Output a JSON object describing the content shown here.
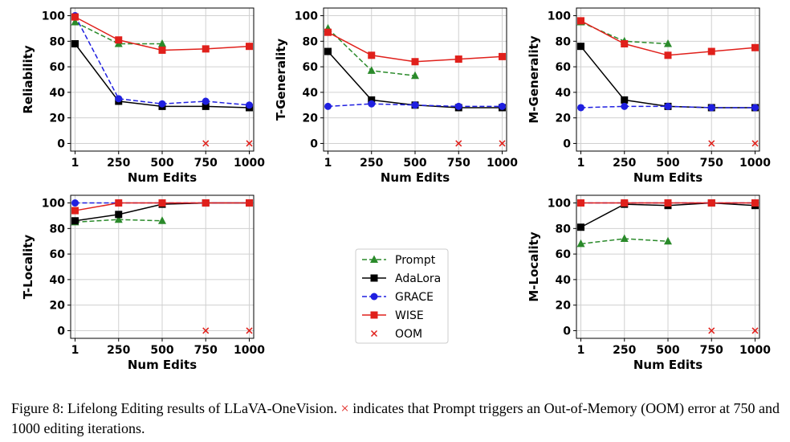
{
  "figure": {
    "caption_prefix": "Figure 8: Lifelong Editing results of LLaVA-OneVision.",
    "caption_mark": "×",
    "caption_suffix": "indicates that Prompt triggers an Out-of-Memory (OOM) error at 750 and 1000 editing iterations."
  },
  "legend": [
    {
      "name": "Prompt",
      "color": "#2a8a2a",
      "marker": "triangle",
      "dash": true
    },
    {
      "name": "AdaLora",
      "color": "#000000",
      "marker": "square",
      "dash": false
    },
    {
      "name": "GRACE",
      "color": "#1f1fe0",
      "marker": "circle",
      "dash": true
    },
    {
      "name": "WISE",
      "color": "#e0201b",
      "marker": "square",
      "dash": false
    },
    {
      "name": "OOM",
      "color": "#e0201b",
      "marker": "x",
      "dash": false
    }
  ],
  "chart_data": [
    {
      "type": "line",
      "ylabel": "Reliability",
      "xlabel": "Num Edits",
      "categories": [
        "1",
        "250",
        "500",
        "750",
        "1000"
      ],
      "ylim": [
        -6,
        106
      ],
      "yticks": [
        0,
        20,
        40,
        60,
        80,
        100
      ],
      "grid": true,
      "series": [
        {
          "name": "Prompt",
          "values": [
            95,
            78,
            78,
            null,
            null
          ]
        },
        {
          "name": "AdaLora",
          "values": [
            78,
            33,
            29,
            29,
            28
          ]
        },
        {
          "name": "GRACE",
          "values": [
            100,
            35,
            31,
            33,
            30
          ]
        },
        {
          "name": "WISE",
          "values": [
            99,
            81,
            73,
            74,
            76
          ]
        },
        {
          "name": "OOM",
          "values": [
            null,
            null,
            null,
            0,
            0
          ]
        }
      ]
    },
    {
      "type": "line",
      "ylabel": "T-Generality",
      "xlabel": "Num Edits",
      "categories": [
        "1",
        "250",
        "500",
        "750",
        "1000"
      ],
      "ylim": [
        -6,
        106
      ],
      "yticks": [
        0,
        20,
        40,
        60,
        80,
        100
      ],
      "grid": true,
      "series": [
        {
          "name": "Prompt",
          "values": [
            90,
            57,
            53,
            null,
            null
          ]
        },
        {
          "name": "AdaLora",
          "values": [
            72,
            34,
            30,
            28,
            28
          ]
        },
        {
          "name": "GRACE",
          "values": [
            29,
            31,
            30,
            29,
            29
          ]
        },
        {
          "name": "WISE",
          "values": [
            87,
            69,
            64,
            66,
            68
          ]
        },
        {
          "name": "OOM",
          "values": [
            null,
            null,
            null,
            0,
            0
          ]
        }
      ]
    },
    {
      "type": "line",
      "ylabel": "M-Generality",
      "xlabel": "Num Edits",
      "categories": [
        "1",
        "250",
        "500",
        "750",
        "1000"
      ],
      "ylim": [
        -6,
        106
      ],
      "yticks": [
        0,
        20,
        40,
        60,
        80,
        100
      ],
      "grid": true,
      "series": [
        {
          "name": "Prompt",
          "values": [
            95,
            80,
            78,
            null,
            null
          ]
        },
        {
          "name": "AdaLora",
          "values": [
            76,
            34,
            29,
            28,
            28
          ]
        },
        {
          "name": "GRACE",
          "values": [
            28,
            29,
            29,
            28,
            28
          ]
        },
        {
          "name": "WISE",
          "values": [
            96,
            78,
            69,
            72,
            75
          ]
        },
        {
          "name": "OOM",
          "values": [
            null,
            null,
            null,
            0,
            0
          ]
        }
      ]
    },
    {
      "type": "line",
      "ylabel": "T-Locality",
      "xlabel": "Num Edits",
      "categories": [
        "1",
        "250",
        "500",
        "750",
        "1000"
      ],
      "ylim": [
        -6,
        106
      ],
      "yticks": [
        0,
        20,
        40,
        60,
        80,
        100
      ],
      "grid": true,
      "series": [
        {
          "name": "Prompt",
          "values": [
            85,
            87,
            86,
            null,
            null
          ]
        },
        {
          "name": "AdaLora",
          "values": [
            86,
            91,
            99,
            100,
            100
          ]
        },
        {
          "name": "GRACE",
          "values": [
            100,
            100,
            100,
            100,
            100
          ]
        },
        {
          "name": "WISE",
          "values": [
            94,
            100,
            100,
            100,
            100
          ]
        },
        {
          "name": "OOM",
          "values": [
            null,
            null,
            null,
            0,
            0
          ]
        }
      ]
    },
    {
      "type": "line",
      "ylabel": "M-Locality",
      "xlabel": "Num Edits",
      "categories": [
        "1",
        "250",
        "500",
        "750",
        "1000"
      ],
      "ylim": [
        -6,
        106
      ],
      "yticks": [
        0,
        20,
        40,
        60,
        80,
        100
      ],
      "grid": true,
      "series": [
        {
          "name": "Prompt",
          "values": [
            68,
            72,
            70,
            null,
            null
          ]
        },
        {
          "name": "AdaLora",
          "values": [
            81,
            99,
            98,
            100,
            98
          ]
        },
        {
          "name": "GRACE",
          "values": [
            100,
            100,
            100,
            100,
            100
          ]
        },
        {
          "name": "WISE",
          "values": [
            100,
            100,
            100,
            100,
            100
          ]
        },
        {
          "name": "OOM",
          "values": [
            null,
            null,
            null,
            0,
            0
          ]
        }
      ]
    }
  ]
}
